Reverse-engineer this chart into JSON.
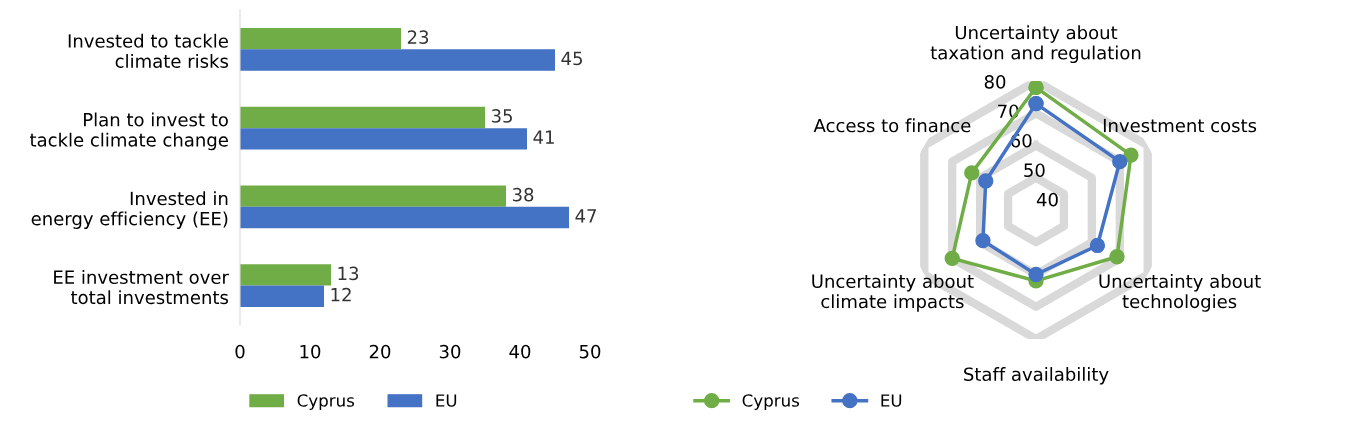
{
  "chart_data": [
    {
      "type": "bar",
      "orientation": "horizontal",
      "categories": [
        "Invested to tackle\nclimate risks",
        "Plan to invest to\ntackle climate change",
        "Invested in\nenergy efficiency (EE)",
        "EE investment over\ntotal investments"
      ],
      "series": [
        {
          "name": "Cyprus",
          "color": "#70ad47",
          "values": [
            23,
            35,
            38,
            13
          ]
        },
        {
          "name": "EU",
          "color": "#4472c4",
          "values": [
            45,
            41,
            47,
            12
          ]
        }
      ],
      "xlim": [
        0,
        50
      ],
      "xticks": [
        0,
        10,
        20,
        30,
        40,
        50
      ],
      "data_labels": true,
      "grid": false,
      "legend": "bottom"
    },
    {
      "type": "radar",
      "categories": [
        "Uncertainty about\ntaxation and regulation",
        "Investment costs",
        "Uncertainty about\ntechnologies",
        "Staff availability",
        "Uncertainty about\nclimate impacts",
        "Access to finance"
      ],
      "series": [
        {
          "name": "Cyprus",
          "color": "#70ad47",
          "values": [
            78,
            74,
            69,
            62,
            70,
            63
          ]
        },
        {
          "name": "EU",
          "color": "#4472c4",
          "values": [
            73,
            70,
            62,
            60,
            59,
            58
          ]
        }
      ],
      "ylim": [
        40,
        80
      ],
      "yticks": [
        40,
        50,
        60,
        70,
        80
      ],
      "grid": true,
      "marker": "circle",
      "legend": "bottom"
    }
  ]
}
